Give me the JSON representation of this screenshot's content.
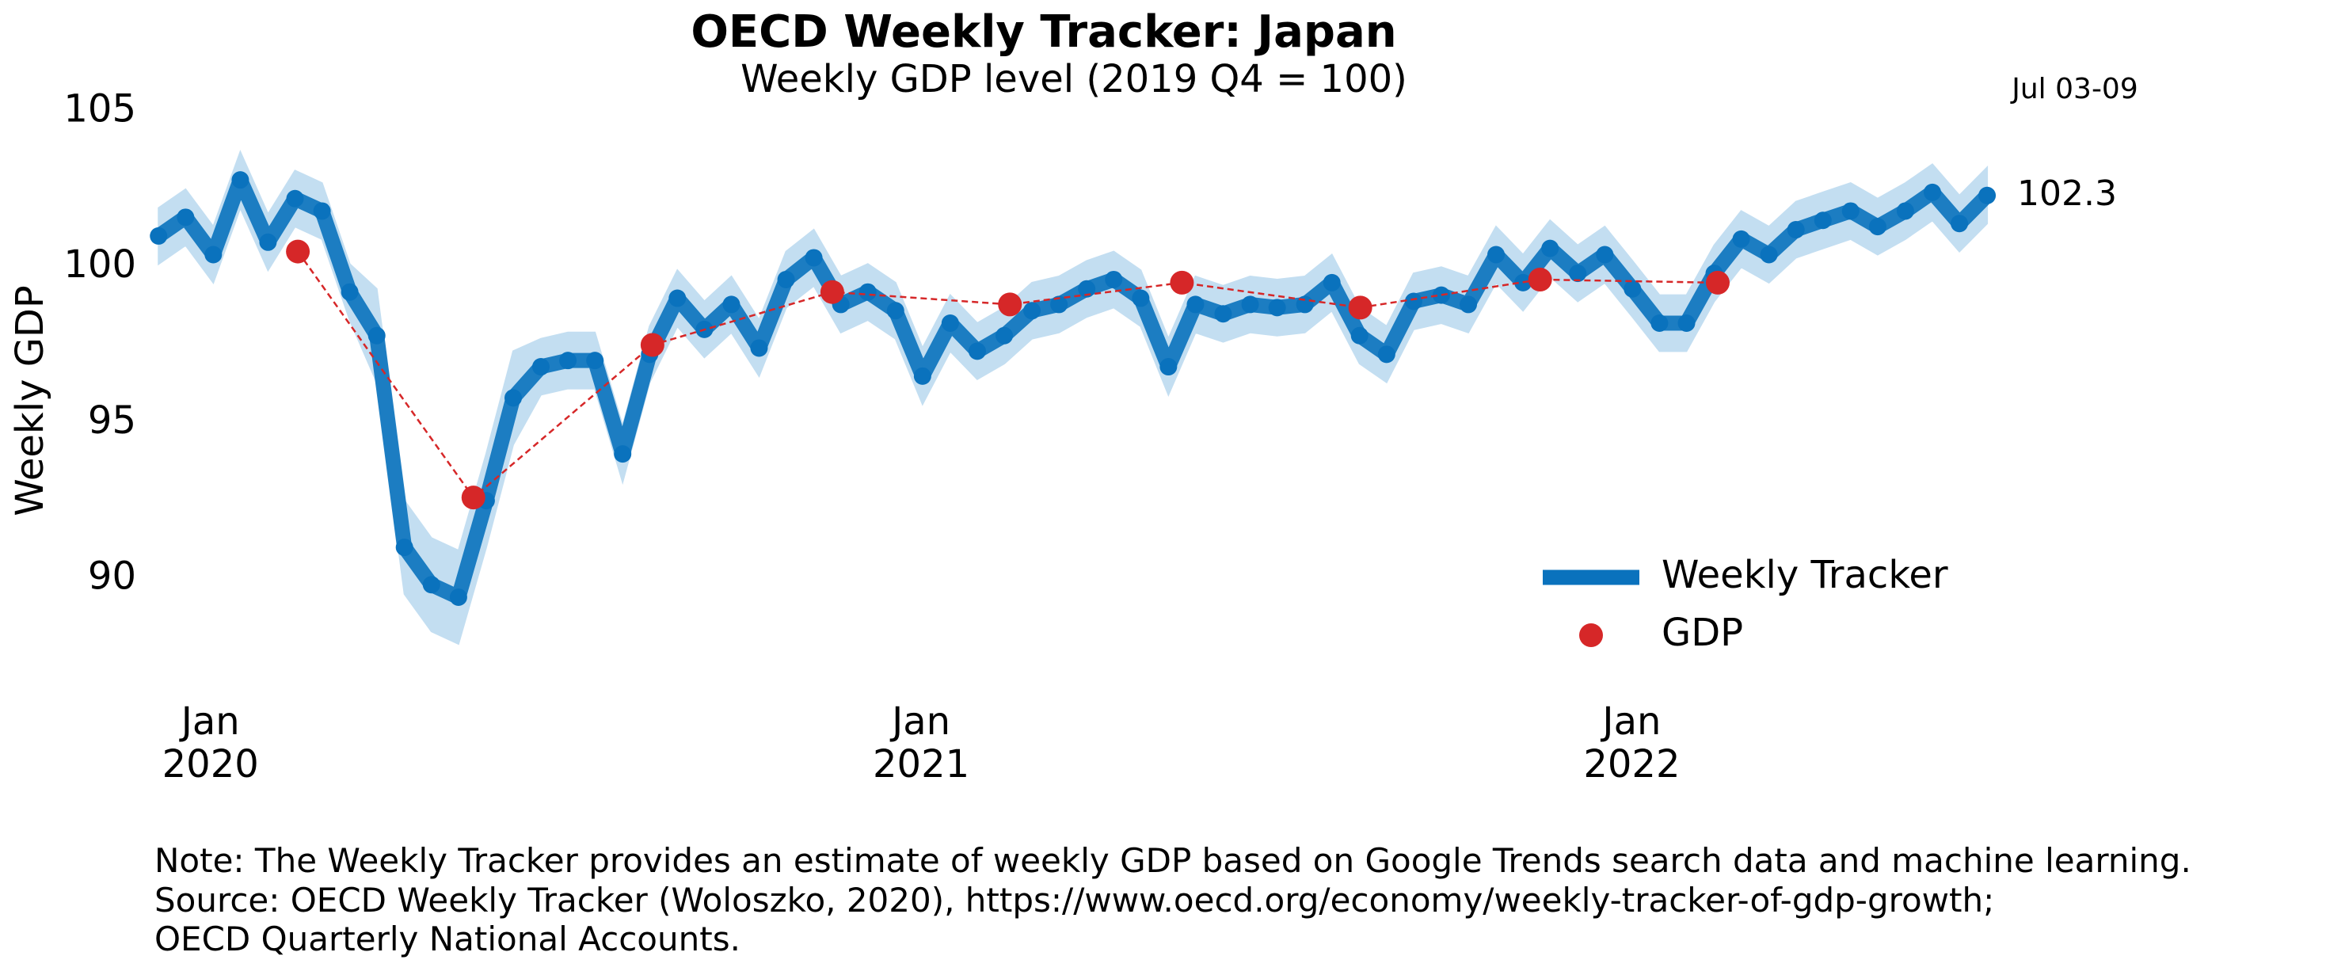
{
  "chart_data": {
    "type": "line",
    "title": "OECD Weekly Tracker: Japan",
    "subtitle": "Weekly GDP level (2019 Q4 = 100)",
    "y_label": "Weekly GDP",
    "last_period": "Jul 03-09",
    "note": "Note: The Weekly Tracker provides an estimate of weekly GDP based on Google Trends search data and machine learning.",
    "source": "Source: OECD Weekly Tracker (Woloszko, 2020), https://www.oecd.org/economy/weekly-tracker-of-gdp-growth;",
    "source_2": "OECD Quarterly National Accounts.",
    "xlim": [
      2019.9,
      2022.53
    ],
    "xticks": [
      {
        "value": 2020,
        "label": "Jan\n2020"
      },
      {
        "value": 2021,
        "label": "Jan\n2021"
      },
      {
        "value": 2022,
        "label": "Jan\n2022"
      }
    ],
    "ylim": [
      86.5,
      105.5
    ],
    "yticks": [
      90,
      95,
      100,
      105
    ],
    "grid": false,
    "legend": "lower right",
    "series": [
      {
        "name": "Weekly Tracker",
        "color": "#0a72bd",
        "band_color": "#c3def1",
        "x": [
          2019.927,
          2019.965,
          2020.004,
          2020.042,
          2020.081,
          2020.119,
          2020.157,
          2020.196,
          2020.234,
          2020.273,
          2020.311,
          2020.349,
          2020.388,
          2020.426,
          2020.465,
          2020.503,
          2020.541,
          2020.58,
          2020.618,
          2020.657,
          2020.695,
          2020.733,
          2020.772,
          2020.81,
          2020.849,
          2020.887,
          2020.925,
          2020.964,
          2021.002,
          2021.041,
          2021.079,
          2021.117,
          2021.156,
          2021.194,
          2021.233,
          2021.271,
          2021.309,
          2021.348,
          2021.386,
          2021.425,
          2021.463,
          2021.501,
          2021.54,
          2021.578,
          2021.617,
          2021.655,
          2021.693,
          2021.732,
          2021.77,
          2021.809,
          2021.847,
          2021.885,
          2021.924,
          2021.962,
          2022.001,
          2022.039,
          2022.077,
          2022.116,
          2022.154,
          2022.193,
          2022.231,
          2022.269,
          2022.308,
          2022.346,
          2022.385,
          2022.423,
          2022.461,
          2022.5
        ],
        "values": [
          101.0,
          101.6,
          100.4,
          102.8,
          100.8,
          102.2,
          101.8,
          99.2,
          97.8,
          91.0,
          89.8,
          89.4,
          92.5,
          95.8,
          96.8,
          97.0,
          97.0,
          94.0,
          97.2,
          99.0,
          98.0,
          98.8,
          97.4,
          99.6,
          100.3,
          98.8,
          99.2,
          98.6,
          96.5,
          98.2,
          97.3,
          97.8,
          98.6,
          98.8,
          99.3,
          99.6,
          99.0,
          96.8,
          98.8,
          98.5,
          98.8,
          98.7,
          98.8,
          99.5,
          97.8,
          97.2,
          98.9,
          99.1,
          98.8,
          100.4,
          99.5,
          100.6,
          99.8,
          100.4,
          99.3,
          98.2,
          98.2,
          99.8,
          100.9,
          100.4,
          101.2,
          101.5,
          101.8,
          101.3,
          101.8,
          102.4,
          101.4,
          102.3
        ],
        "lower": [
          100.1,
          100.7,
          99.5,
          101.9,
          99.9,
          101.3,
          100.9,
          98.3,
          96.3,
          89.5,
          88.3,
          87.9,
          91.0,
          94.3,
          95.9,
          96.1,
          96.1,
          93.1,
          96.3,
          98.1,
          97.1,
          97.9,
          96.5,
          98.7,
          99.4,
          97.9,
          98.3,
          97.7,
          95.6,
          97.3,
          96.4,
          96.9,
          97.7,
          97.9,
          98.4,
          98.7,
          98.1,
          95.9,
          97.9,
          97.6,
          97.9,
          97.8,
          97.9,
          98.6,
          96.9,
          96.3,
          98.0,
          98.2,
          97.9,
          99.5,
          98.6,
          99.7,
          98.9,
          99.5,
          98.4,
          97.3,
          97.3,
          98.9,
          100.0,
          99.5,
          100.3,
          100.6,
          100.9,
          100.4,
          100.9,
          101.5,
          100.5,
          101.4
        ],
        "upper": [
          101.9,
          102.5,
          101.3,
          103.7,
          101.7,
          103.1,
          102.7,
          100.1,
          99.3,
          92.5,
          91.3,
          90.9,
          94.0,
          97.3,
          97.7,
          97.9,
          97.9,
          94.9,
          98.1,
          99.9,
          98.9,
          99.7,
          98.3,
          100.5,
          101.2,
          99.7,
          100.1,
          99.5,
          97.4,
          99.1,
          98.2,
          98.7,
          99.5,
          99.7,
          100.2,
          100.5,
          99.9,
          97.7,
          99.7,
          99.4,
          99.7,
          99.6,
          99.7,
          100.4,
          98.7,
          98.1,
          99.8,
          100.0,
          99.7,
          101.3,
          100.4,
          101.5,
          100.7,
          101.3,
          100.2,
          99.1,
          99.1,
          100.7,
          101.8,
          101.3,
          102.1,
          102.4,
          102.7,
          102.2,
          102.7,
          103.3,
          102.3,
          103.2
        ]
      },
      {
        "name": "GDP",
        "color": "#d62728",
        "x": [
          2020.123,
          2020.37,
          2020.622,
          2020.875,
          2021.125,
          2021.367,
          2021.618,
          2021.871,
          2022.121
        ],
        "values": [
          100.5,
          92.6,
          97.5,
          99.2,
          98.8,
          99.5,
          98.7,
          99.6,
          99.5
        ]
      }
    ]
  }
}
